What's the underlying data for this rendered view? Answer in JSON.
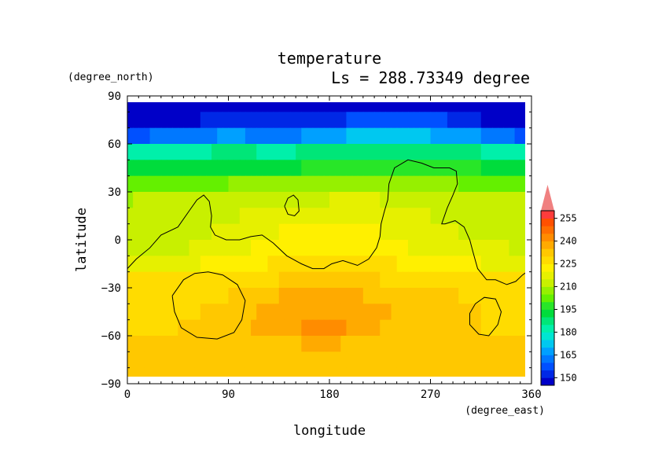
{
  "chart_data": {
    "type": "heatmap",
    "title": "temperature",
    "subtitle": "Ls = 288.73349 degree",
    "xlabel": "longitude",
    "ylabel": "latitude",
    "x_unit": "(degree_east)",
    "y_unit": "(degree_north)",
    "xlim": [
      0,
      360
    ],
    "ylim": [
      -90,
      90
    ],
    "x_ticks": [
      "0",
      "90",
      "180",
      "270",
      "360"
    ],
    "y_ticks": [
      "90",
      "60",
      "30",
      "0",
      "-30",
      "-60",
      "-90"
    ],
    "colorbar": {
      "levels": [
        145,
        150,
        155,
        160,
        165,
        170,
        175,
        180,
        185,
        190,
        195,
        200,
        205,
        210,
        215,
        220,
        225,
        230,
        235,
        240,
        245,
        250,
        255,
        260
      ],
      "colors": [
        "#0000c8",
        "#0028e6",
        "#0050ff",
        "#0078ff",
        "#00a0ff",
        "#00c8f0",
        "#00e6d2",
        "#00f0aa",
        "#00e678",
        "#00dc3c",
        "#28e628",
        "#64f000",
        "#96f000",
        "#c8f000",
        "#e6f000",
        "#fff000",
        "#ffdc00",
        "#ffc800",
        "#ffaa00",
        "#ff8c00",
        "#ff6e00",
        "#ff5000",
        "#ff3c3c",
        "#f08080"
      ],
      "tick_labels": [
        "150",
        "165",
        "180",
        "195",
        "210",
        "225",
        "240",
        "255"
      ]
    },
    "latitudes": [
      85,
      75,
      65,
      55,
      45,
      35,
      25,
      15,
      5,
      -5,
      -15,
      -25,
      -35,
      -45,
      -55,
      -65,
      -75,
      -85
    ],
    "longitude_bands": [
      {
        "lon": 0,
        "values": [
          146,
          148,
          158,
          180,
          192,
          202,
          210,
          212,
          213,
          214,
          218,
          226,
          228,
          229,
          229,
          230,
          232,
          232
        ]
      },
      {
        "lon": 45,
        "values": [
          146,
          149,
          162,
          183,
          193,
          203,
          210,
          212,
          213,
          214,
          218,
          226,
          228,
          229,
          230,
          231,
          232,
          233
        ]
      },
      {
        "lon": 90,
        "values": [
          146,
          151,
          166,
          186,
          195,
          205,
          212,
          214,
          216,
          218,
          222,
          228,
          230,
          231,
          232,
          232,
          233,
          234
        ]
      },
      {
        "lon": 135,
        "values": [
          147,
          150,
          163,
          184,
          194,
          205,
          214,
          218,
          220,
          222,
          226,
          230,
          235,
          238,
          238,
          234,
          233,
          233
        ]
      },
      {
        "lon": 180,
        "values": [
          148,
          152,
          168,
          187,
          196,
          206,
          215,
          219,
          221,
          223,
          227,
          231,
          237,
          240,
          242,
          236,
          233,
          233
        ]
      },
      {
        "lon": 225,
        "values": [
          150,
          160,
          175,
          190,
          198,
          207,
          215,
          218,
          220,
          222,
          226,
          230,
          234,
          236,
          235,
          232,
          232,
          232
        ]
      },
      {
        "lon": 270,
        "values": [
          149,
          157,
          170,
          188,
          197,
          206,
          213,
          215,
          216,
          218,
          223,
          229,
          231,
          231,
          231,
          231,
          232,
          232
        ]
      },
      {
        "lon": 315,
        "values": [
          146,
          150,
          165,
          185,
          195,
          204,
          211,
          213,
          214,
          216,
          220,
          227,
          229,
          230,
          230,
          231,
          232,
          232
        ]
      },
      {
        "lon": 360,
        "values": [
          146,
          148,
          158,
          180,
          192,
          202,
          210,
          212,
          213,
          214,
          218,
          226,
          228,
          229,
          229,
          230,
          232,
          232
        ]
      }
    ],
    "contours": [
      {
        "name": "topography-contour-main",
        "points": [
          [
            0,
            -18
          ],
          [
            8,
            -12
          ],
          [
            20,
            -5
          ],
          [
            30,
            3
          ],
          [
            45,
            8
          ],
          [
            55,
            18
          ],
          [
            62,
            25
          ],
          [
            68,
            28
          ],
          [
            73,
            24
          ],
          [
            75,
            15
          ],
          [
            74,
            8
          ],
          [
            78,
            3
          ],
          [
            88,
            0
          ],
          [
            100,
            0
          ],
          [
            110,
            2
          ],
          [
            120,
            3
          ],
          [
            130,
            -2
          ],
          [
            142,
            -10
          ],
          [
            155,
            -15
          ],
          [
            165,
            -18
          ],
          [
            175,
            -18
          ],
          [
            182,
            -15
          ],
          [
            192,
            -13
          ],
          [
            205,
            -16
          ],
          [
            215,
            -12
          ],
          [
            222,
            -5
          ],
          [
            225,
            2
          ],
          [
            226,
            10
          ],
          [
            229,
            18
          ],
          [
            232,
            25
          ],
          [
            233,
            35
          ],
          [
            238,
            45
          ],
          [
            250,
            50
          ],
          [
            262,
            48
          ],
          [
            273,
            45
          ],
          [
            287,
            45
          ],
          [
            293,
            43
          ],
          [
            294,
            35
          ],
          [
            290,
            28
          ],
          [
            285,
            20
          ],
          [
            280,
            10
          ],
          [
            283,
            10
          ],
          [
            292,
            12
          ],
          [
            300,
            8
          ],
          [
            305,
            0
          ],
          [
            308,
            -8
          ],
          [
            312,
            -18
          ],
          [
            320,
            -25
          ],
          [
            328,
            -25
          ],
          [
            338,
            -28
          ],
          [
            346,
            -26
          ],
          [
            352,
            -22
          ],
          [
            360,
            -18
          ]
        ]
      },
      {
        "name": "topography-contour-west-crater",
        "points": [
          [
            40,
            -35
          ],
          [
            50,
            -25
          ],
          [
            60,
            -21
          ],
          [
            72,
            -20
          ],
          [
            85,
            -22
          ],
          [
            98,
            -28
          ],
          [
            105,
            -38
          ],
          [
            102,
            -50
          ],
          [
            95,
            -58
          ],
          [
            80,
            -62
          ],
          [
            62,
            -61
          ],
          [
            48,
            -55
          ],
          [
            42,
            -45
          ],
          [
            40,
            -35
          ]
        ]
      },
      {
        "name": "topography-contour-east-crater",
        "points": [
          [
            305,
            -46
          ],
          [
            310,
            -40
          ],
          [
            318,
            -36
          ],
          [
            328,
            -37
          ],
          [
            333,
            -45
          ],
          [
            330,
            -53
          ],
          [
            322,
            -60
          ],
          [
            313,
            -59
          ],
          [
            305,
            -53
          ],
          [
            305,
            -46
          ]
        ]
      },
      {
        "name": "topography-contour-small-island",
        "points": [
          [
            140,
            21
          ],
          [
            143,
            26
          ],
          [
            148,
            28
          ],
          [
            152,
            25
          ],
          [
            153,
            18
          ],
          [
            149,
            15
          ],
          [
            143,
            16
          ],
          [
            140,
            21
          ]
        ]
      }
    ]
  }
}
